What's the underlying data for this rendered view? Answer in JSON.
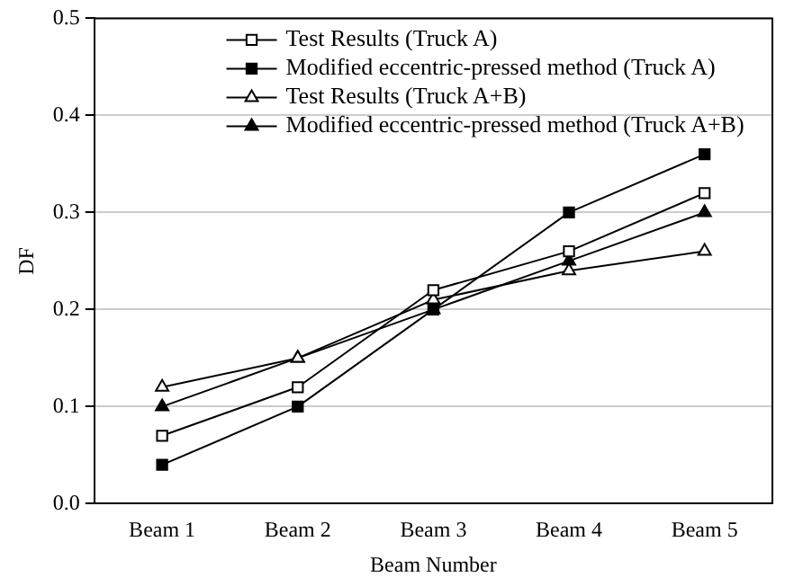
{
  "chart_data": {
    "type": "line",
    "xlabel": "Beam Number",
    "ylabel": "DF",
    "categories": [
      "Beam 1",
      "Beam 2",
      "Beam 3",
      "Beam 4",
      "Beam 5"
    ],
    "series": [
      {
        "name": "Test Results (Truck A)",
        "color": "#000000",
        "marker": "square",
        "colors": [
          "#ffffff",
          "#ffffff",
          "#ffffff",
          "#ffffff",
          "#ffffff"
        ],
        "values": [
          0.07,
          0.12,
          0.22,
          0.26,
          0.32
        ]
      },
      {
        "name": "Modified eccentric-pressed method (Truck A)",
        "color": "#000000",
        "marker": "square",
        "values": [
          0.04,
          0.1,
          0.2,
          0.3,
          0.36
        ]
      },
      {
        "name": "Test Results (Truck A+B)",
        "color": "#000000",
        "marker": "triangle",
        "colors": [
          "#ffffff",
          "#ffffff",
          "#ffffff",
          "#ffffff",
          "#ffffff"
        ],
        "values": [
          0.12,
          0.15,
          0.21,
          0.24,
          0.26
        ]
      },
      {
        "name": "Modified eccentric-pressed method (Truck A+B)",
        "color": "#000000",
        "marker": "triangle",
        "values": [
          0.1,
          0.15,
          0.2,
          0.25,
          0.3
        ]
      }
    ],
    "ylim": [
      0,
      0.5
    ],
    "yticks": [
      {
        "value": 0,
        "label": "0.0"
      },
      0.1,
      0.2,
      0.3,
      0.4,
      0.5
    ],
    "grid": "y",
    "legend": "top",
    "line_style": "solid"
  }
}
